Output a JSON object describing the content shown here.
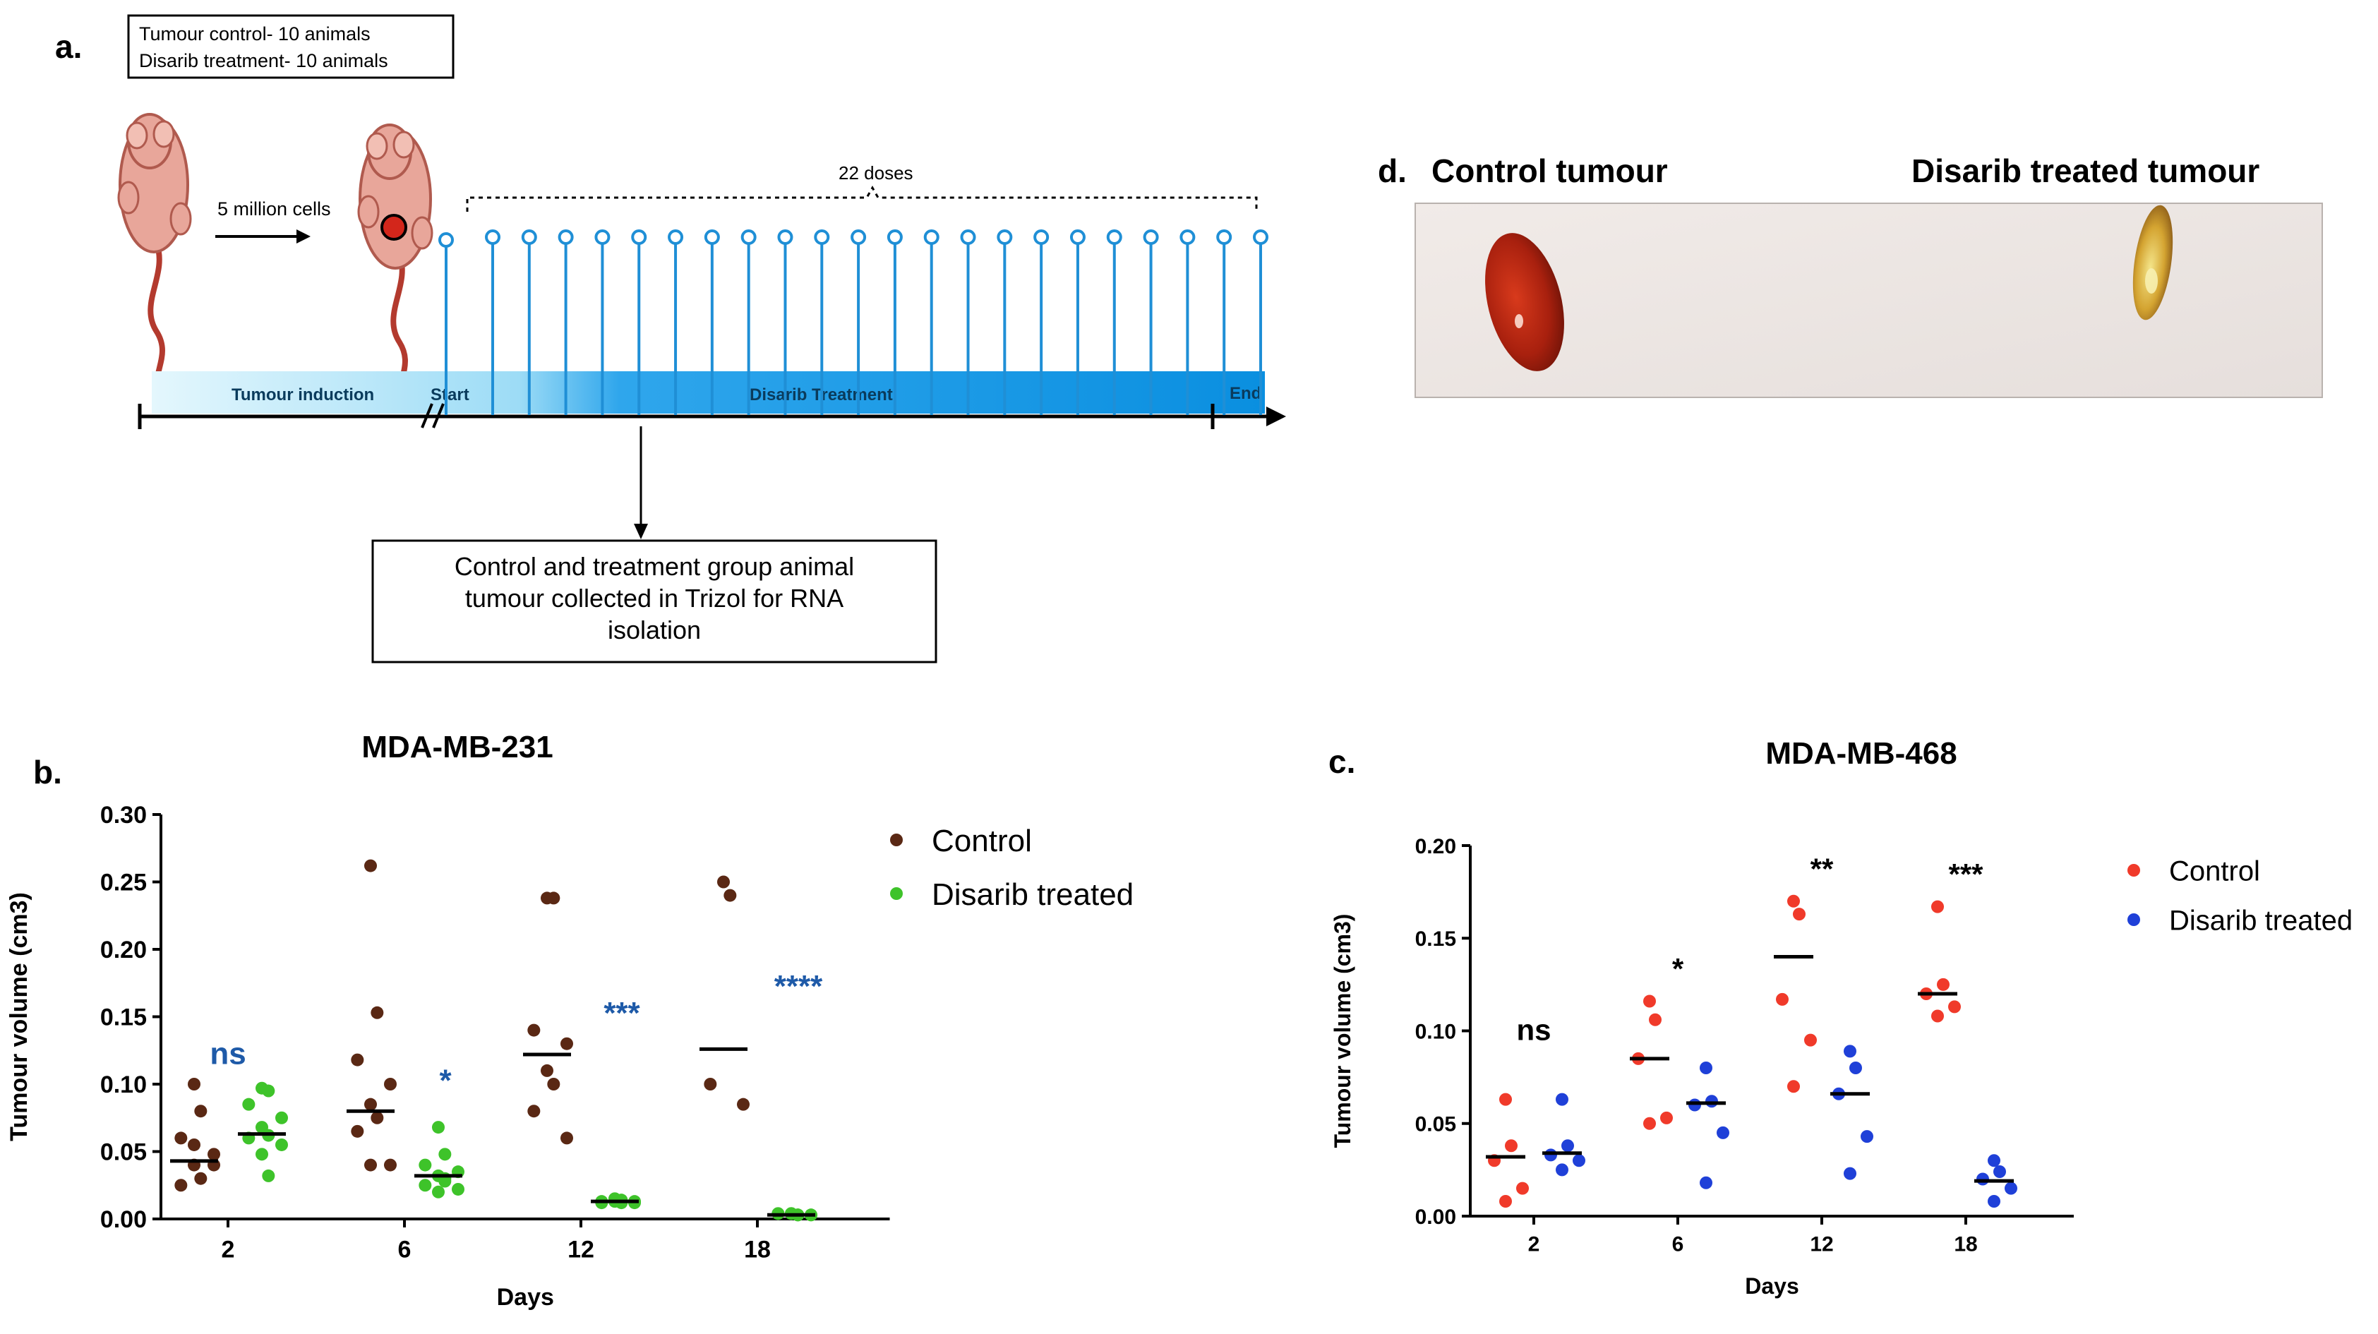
{
  "figure": {
    "panel_labels": {
      "a": "a.",
      "b": "b.",
      "c": "c.",
      "d": "d."
    }
  },
  "panel_a": {
    "info_box": [
      "Tumour control- 10 animals",
      "Disarib treatment- 10 animals"
    ],
    "cells_label": "5 million cells",
    "doses_label": "22 doses",
    "doses_count": 22,
    "bar_labels": {
      "induction": "Tumour induction",
      "start": "Start",
      "treatment": "Disarib Treatment",
      "end": "End"
    },
    "collection_box": [
      "Control and treatment group animal",
      "tumour collected in Trizol for RNA",
      "isolation"
    ],
    "colors": {
      "mouse": "#e8a69a",
      "mouse_outline": "#b05a4e",
      "tail": "#b33a2e",
      "tumour": "#d3261b",
      "doses": "#1f8fd6",
      "bar_light": "#bfe9f9",
      "bar_dark": "#0a8fe0"
    }
  },
  "panel_d": {
    "control_label": "Control tumour",
    "treated_label": "Disarib treated tumour",
    "colors": {
      "background": "#ece6e2",
      "control_tumour": "#b3200f",
      "treated_tumour": "#d4a431"
    }
  },
  "chart_data": [
    {
      "id": "b",
      "type": "scatter",
      "title": "MDA-MB-231",
      "xlabel": "Days",
      "ylabel": "Tumour volume (cm3)",
      "categories": [
        "2",
        "6",
        "12",
        "18"
      ],
      "ylim": [
        0,
        0.3
      ],
      "yticks": [
        "0.00",
        "0.05",
        "0.10",
        "0.15",
        "0.20",
        "0.25",
        "0.30"
      ],
      "legend_position": "right",
      "series": [
        {
          "name": "Control",
          "color": "#5a2814",
          "values": [
            [
              0.1,
              0.08,
              0.06,
              0.048,
              0.04,
              0.03,
              0.025,
              0.04,
              0.055
            ],
            [
              0.262,
              0.153,
              0.118,
              0.1,
              0.085,
              0.075,
              0.065,
              0.04,
              0.04
            ],
            [
              0.238,
              0.238,
              0.14,
              0.13,
              0.11,
              0.1,
              0.08,
              0.06
            ],
            [
              0.25,
              0.24,
              0.1,
              0.085
            ]
          ],
          "medians": [
            0.043,
            0.08,
            0.122,
            0.126
          ]
        },
        {
          "name": "Disarib treated",
          "color": "#3ec32a",
          "values": [
            [
              0.097,
              0.095,
              0.085,
              0.075,
              0.068,
              0.062,
              0.06,
              0.055,
              0.048,
              0.032
            ],
            [
              0.068,
              0.048,
              0.04,
              0.035,
              0.032,
              0.03,
              0.025,
              0.022,
              0.02,
              0.028
            ],
            [
              0.015,
              0.014,
              0.013,
              0.012,
              0.013,
              0.014,
              0.012,
              0.013,
              0.015,
              0.012
            ],
            [
              0.004,
              0.003,
              0.004,
              0.003,
              0.004,
              0.003,
              0.004,
              0.003,
              0.004,
              0.003
            ]
          ],
          "medians": [
            0.063,
            0.032,
            0.013,
            0.003
          ]
        }
      ],
      "annotations": [
        "ns",
        "*",
        "***",
        "****"
      ],
      "annotation_color": "#1e5aa8"
    },
    {
      "id": "c",
      "type": "scatter",
      "title": "MDA-MB-468",
      "xlabel": "Days",
      "ylabel": "Tumour volume (cm3)",
      "categories": [
        "2",
        "6",
        "12",
        "18"
      ],
      "ylim": [
        0,
        0.2
      ],
      "yticks": [
        "0.00",
        "0.05",
        "0.10",
        "0.15",
        "0.20"
      ],
      "legend_position": "right",
      "series": [
        {
          "name": "Control",
          "color": "#f03a2a",
          "values": [
            [
              0.063,
              0.038,
              0.03,
              0.015,
              0.008
            ],
            [
              0.116,
              0.106,
              0.085,
              0.053,
              0.05
            ],
            [
              0.17,
              0.163,
              0.117,
              0.095,
              0.07
            ],
            [
              0.167,
              0.125,
              0.12,
              0.113,
              0.108
            ]
          ],
          "medians": [
            0.032,
            0.085,
            0.14,
            0.12
          ]
        },
        {
          "name": "Disarib treated",
          "color": "#1f40d8",
          "values": [
            [
              0.063,
              0.038,
              0.033,
              0.03,
              0.025
            ],
            [
              0.08,
              0.062,
              0.06,
              0.045,
              0.018
            ],
            [
              0.089,
              0.08,
              0.066,
              0.043,
              0.023
            ],
            [
              0.03,
              0.024,
              0.02,
              0.015,
              0.008
            ]
          ],
          "medians": [
            0.034,
            0.061,
            0.066,
            0.019
          ]
        }
      ],
      "annotations": [
        "ns",
        "*",
        "**",
        "***"
      ],
      "annotation_color": "#000000"
    }
  ]
}
